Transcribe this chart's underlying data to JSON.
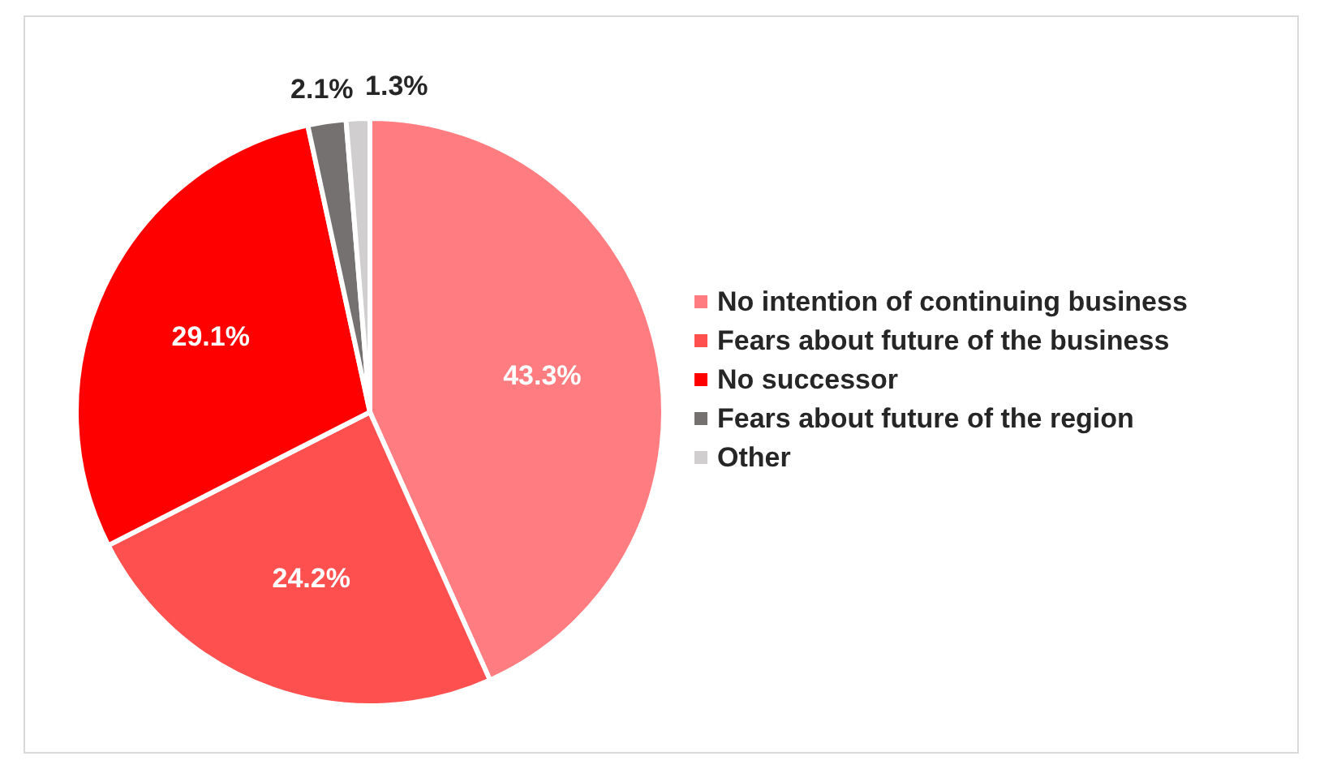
{
  "chart_data": {
    "type": "pie",
    "categories": [
      "No intention of continuing business",
      "Fears about future of the business",
      "No successor",
      "Fears about future of the region",
      "Other"
    ],
    "values": [
      43.3,
      24.2,
      29.1,
      2.1,
      1.3
    ],
    "colors": [
      "#ff7c80",
      "#ff5050",
      "#ff0000",
      "#767171",
      "#d0cece"
    ],
    "value_labels": [
      "43.3%",
      "24.2%",
      "29.1%",
      "2.1%",
      "1.3%"
    ],
    "legend": "right"
  }
}
